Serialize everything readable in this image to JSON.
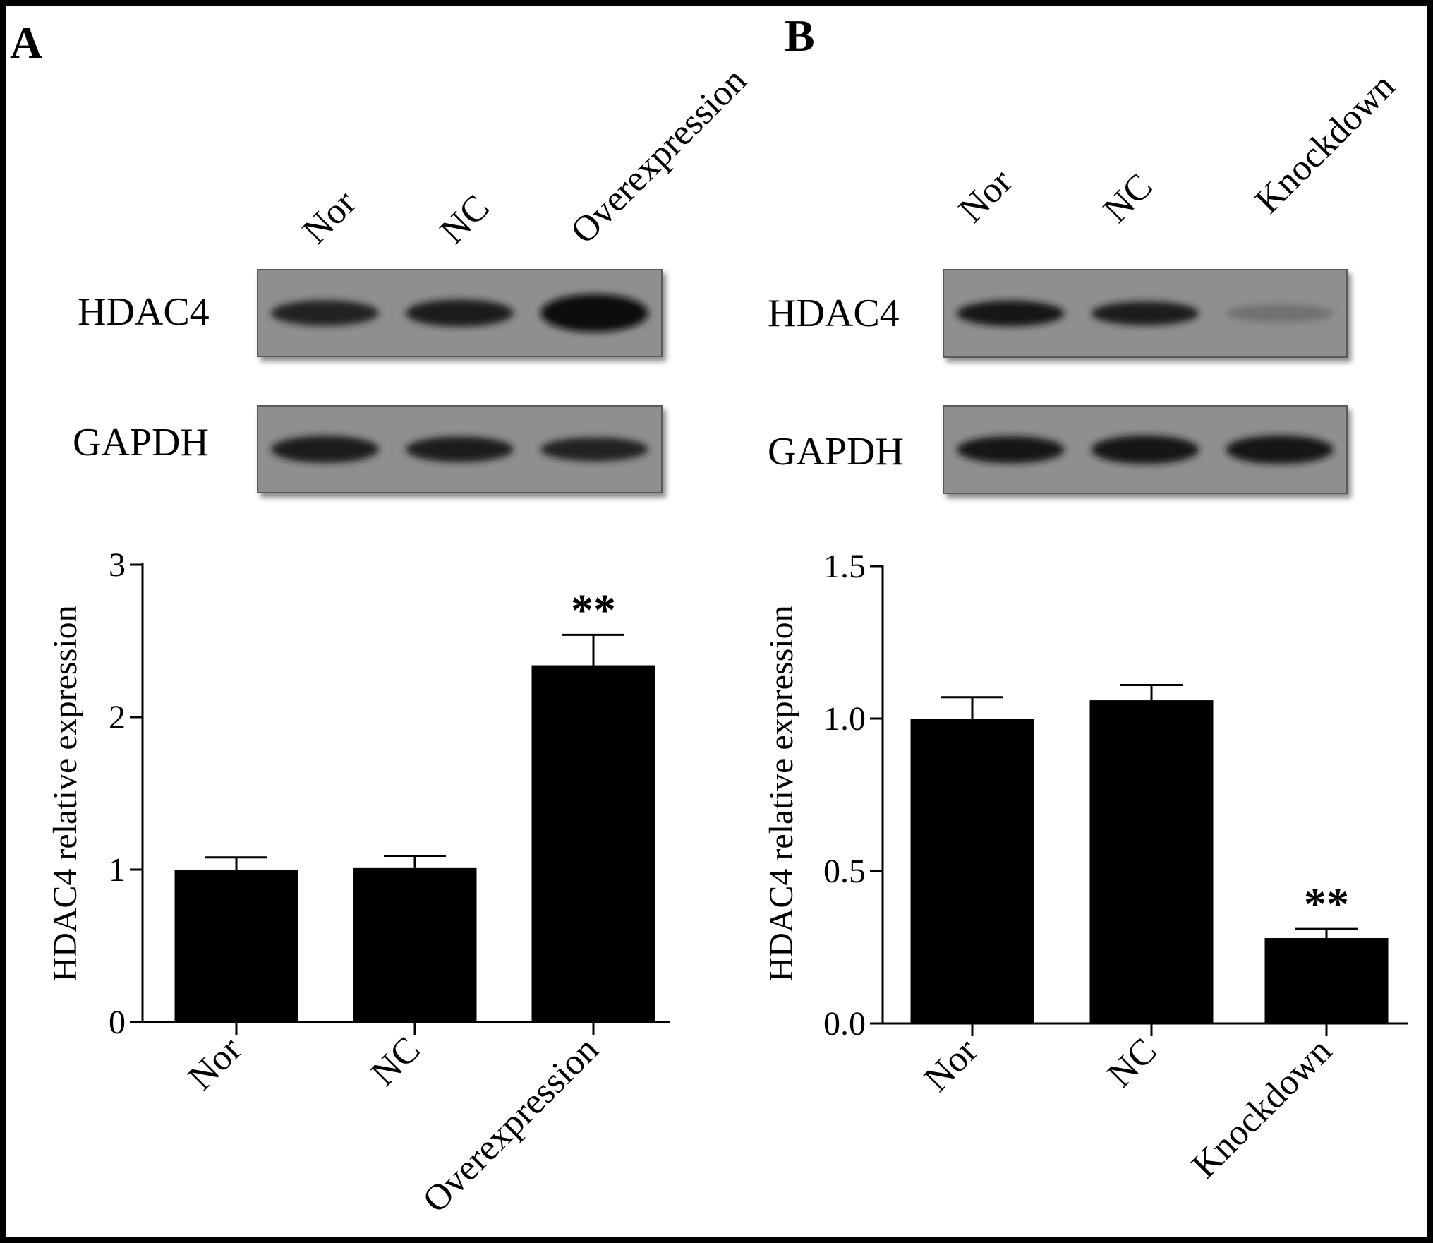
{
  "frame_color": "#000000",
  "panels": [
    {
      "letter": "A",
      "blot": {
        "lanes": [
          "Nor",
          "NC",
          "Overexpression"
        ],
        "rows": [
          {
            "label": "HDAC4",
            "band_intensity": [
              0.8,
              0.85,
              1.0
            ],
            "band_thickness": [
              0.55,
              0.6,
              0.95
            ]
          },
          {
            "label": "GAPDH",
            "band_intensity": [
              0.85,
              0.85,
              0.8
            ],
            "band_thickness": [
              0.6,
              0.55,
              0.5
            ]
          }
        ]
      }
    },
    {
      "letter": "B",
      "blot": {
        "lanes": [
          "Nor",
          "NC",
          "Knockdown"
        ],
        "rows": [
          {
            "label": "HDAC4",
            "band_intensity": [
              0.9,
              0.85,
              0.25
            ],
            "band_thickness": [
              0.55,
              0.5,
              0.3
            ]
          },
          {
            "label": "GAPDH",
            "band_intensity": [
              0.9,
              0.9,
              0.9
            ],
            "band_thickness": [
              0.6,
              0.65,
              0.65
            ]
          }
        ]
      }
    }
  ],
  "chart_data": [
    {
      "type": "bar",
      "panel": "A",
      "categories": [
        "Nor",
        "NC",
        "Overexpression"
      ],
      "values": [
        1.0,
        1.01,
        2.34
      ],
      "errors": [
        0.08,
        0.08,
        0.2
      ],
      "annotations": [
        "",
        "",
        "**"
      ],
      "ylabel": "HDAC4 relative expression",
      "ylim": [
        0,
        3
      ],
      "yticks": [
        0,
        1,
        2,
        3
      ],
      "ytick_labels": [
        "0",
        "1",
        "2",
        "3"
      ],
      "bar_color": "#000000",
      "grid": false
    },
    {
      "type": "bar",
      "panel": "B",
      "categories": [
        "Nor",
        "NC",
        "Knockdown"
      ],
      "values": [
        1.0,
        1.06,
        0.28
      ],
      "errors": [
        0.07,
        0.05,
        0.03
      ],
      "annotations": [
        "",
        "",
        "**"
      ],
      "ylabel": "HDAC4 relative expression",
      "ylim": [
        0,
        1.5
      ],
      "yticks": [
        0,
        0.5,
        1.0,
        1.5
      ],
      "ytick_labels": [
        "0.0",
        "0.5",
        "1.0",
        "1.5"
      ],
      "bar_color": "#000000",
      "grid": false
    }
  ]
}
